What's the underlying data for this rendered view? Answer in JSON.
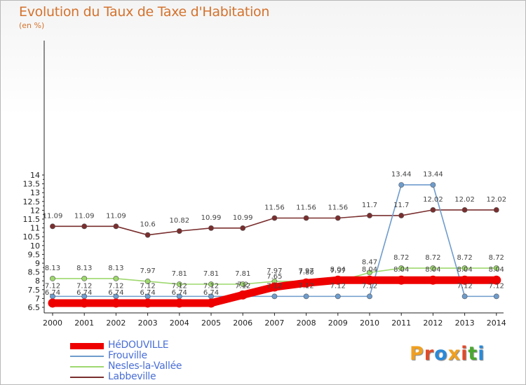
{
  "title": "Evolution du Taux de Taxe d'Habitation",
  "unit": "(en %)",
  "logo": {
    "text": "Proxiti",
    "colors": [
      "#f0a020",
      "#e04a2a",
      "#2a8ad8",
      "#f0a020",
      "#e04a2a",
      "#4aa830",
      "#2a8ad8"
    ]
  },
  "chart_data": {
    "type": "line",
    "title": "Evolution du Taux de Taxe d'Habitation",
    "ylabel": "(en %)",
    "xlabel": "",
    "ylim": [
      6.5,
      14
    ],
    "yticks": [
      "6.5",
      "7",
      "7.5",
      "8",
      "8.5",
      "9",
      "9.5",
      "10",
      "10.5",
      "11",
      "11.5",
      "12",
      "12.5",
      "13",
      "13.5",
      "14"
    ],
    "grid": false,
    "legend": "bottom-left",
    "x": [
      "2000",
      "2001",
      "2002",
      "2003",
      "2004",
      "2005",
      "2006",
      "2007",
      "2008",
      "2009",
      "2010",
      "2011",
      "2012",
      "2013",
      "2014"
    ],
    "series": [
      {
        "name": "HéDOUVILLE",
        "color": "#ee0000",
        "values": [
          6.74,
          6.74,
          6.74,
          6.74,
          6.74,
          6.74,
          7.2,
          7.65,
          7.88,
          8.04,
          8.04,
          8.04,
          8.04,
          8.04,
          8.04
        ],
        "labels": [
          "6.74",
          "6.74",
          "6.74",
          "6.74",
          "6.74",
          "6.74",
          "7.2",
          "7.65",
          "7.88",
          "8.04",
          "8.04",
          "8.04",
          "8.04",
          "8.04",
          "8.04"
        ]
      },
      {
        "name": "Frouville",
        "color": "#6e9ccc",
        "values": [
          7.12,
          7.12,
          7.12,
          7.12,
          7.12,
          7.12,
          7.12,
          7.12,
          7.12,
          7.12,
          7.12,
          13.44,
          13.44,
          7.12,
          7.12
        ],
        "labels": [
          "7.12",
          "7.12",
          "7.12",
          "7.12",
          "7.12",
          "7.12",
          "7.12",
          "7.12",
          "7.12",
          "7.12",
          "7.12",
          "13.44",
          "13.44",
          "7.12",
          "7.12"
        ]
      },
      {
        "name": "Nesles-la-Vallée",
        "color": "#9ed86e",
        "values": [
          8.13,
          8.13,
          8.13,
          7.97,
          7.81,
          7.81,
          7.81,
          7.97,
          7.97,
          7.97,
          8.47,
          8.72,
          8.72,
          8.72,
          8.72
        ],
        "labels": [
          "8.13",
          "8.13",
          "8.13",
          "7.97",
          "7.81",
          "7.81",
          "7.81",
          "7.97",
          "7.97",
          "7.97",
          "8.47",
          "8.72",
          "8.72",
          "8.72",
          "8.72"
        ]
      },
      {
        "name": "Labbeville",
        "color": "#7a2e2e",
        "values": [
          11.09,
          11.09,
          11.09,
          10.6,
          10.82,
          10.99,
          10.99,
          11.56,
          11.56,
          11.56,
          11.7,
          11.7,
          12.02,
          12.02,
          12.02
        ],
        "labels": [
          "11.09",
          "11.09",
          "11.09",
          "10.6",
          "10.82",
          "10.99",
          "10.99",
          "11.56",
          "11.56",
          "11.56",
          "11.7",
          "11.7",
          "12.02",
          "12.02",
          "12.02"
        ]
      }
    ]
  }
}
